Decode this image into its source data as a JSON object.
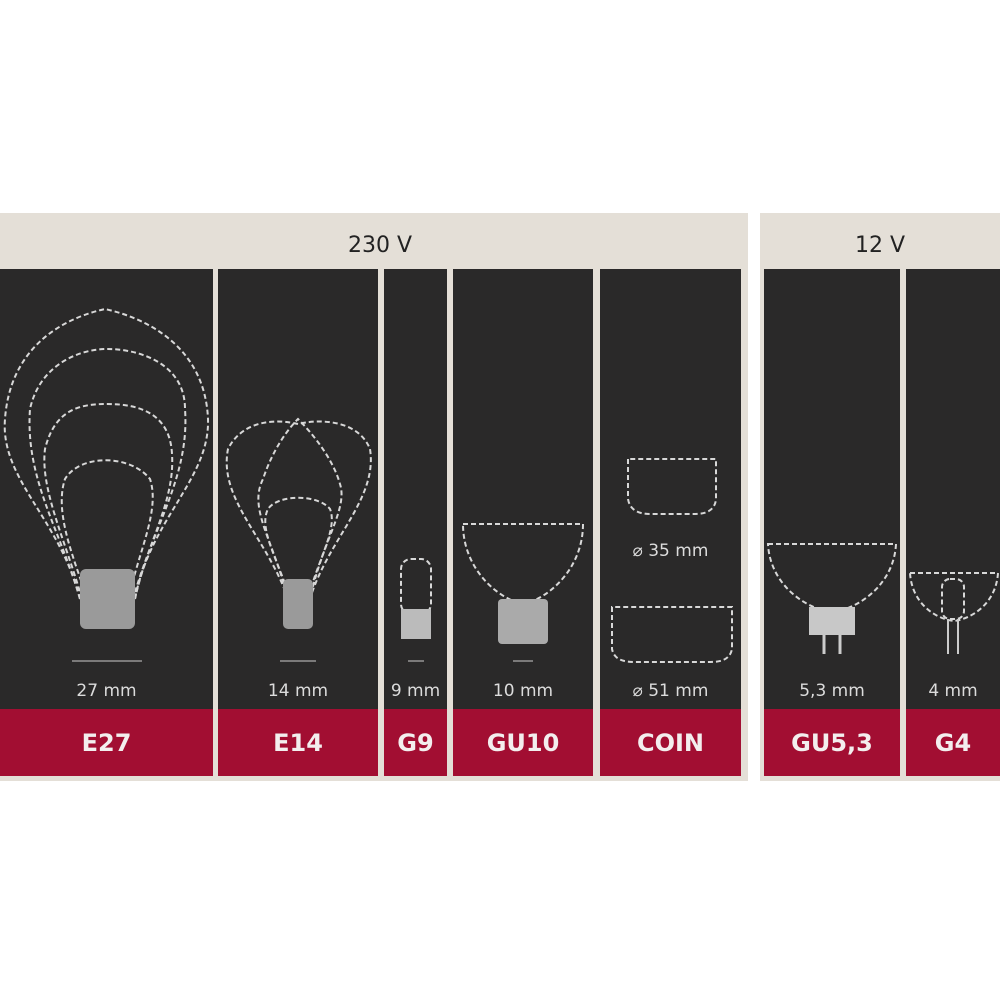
{
  "groups": [
    {
      "voltage": "230 V"
    },
    {
      "voltage": "12 V"
    }
  ],
  "sockets": [
    {
      "name": "E27",
      "size": "27 mm"
    },
    {
      "name": "E14",
      "size": "14 mm"
    },
    {
      "name": "G9",
      "size": "9 mm"
    },
    {
      "name": "GU10",
      "size": "10 mm"
    },
    {
      "name": "COIN",
      "size": "⌀ 51 mm",
      "size_small": "⌀ 35 mm"
    },
    {
      "name": "GU5,3",
      "size": "5,3 mm"
    },
    {
      "name": "G4",
      "size": "4 mm"
    }
  ],
  "colors": {
    "band": "#e4dfd7",
    "panel": "#2a2929",
    "label": "#a20e32"
  }
}
